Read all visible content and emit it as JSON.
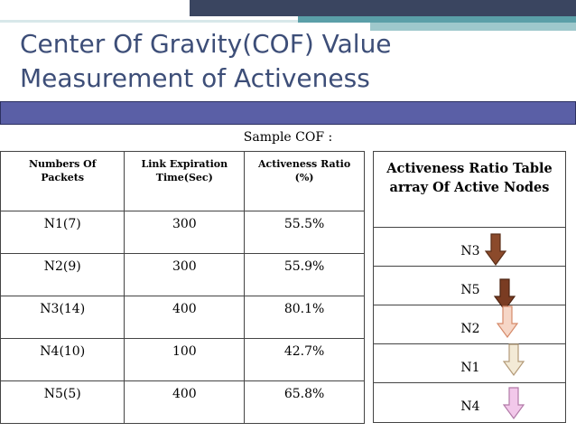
{
  "title": {
    "line1": "Center Of Gravity(COF) Value",
    "line2": "Measurement of Activeness"
  },
  "caption": "Sample COF :",
  "cof_table": {
    "headers": [
      "Numbers Of Packets",
      "Link Expiration Time(Sec)",
      "Activeness  Ratio (%)"
    ],
    "rows": [
      [
        "N1(7)",
        "300",
        "55.5%"
      ],
      [
        "N2(9)",
        "300",
        "55.9%"
      ],
      [
        "N3(14)",
        "400",
        "80.1%"
      ],
      [
        "N4(10)",
        "100",
        "42.7%"
      ],
      [
        "N5(5)",
        "400",
        "65.8%"
      ]
    ]
  },
  "ratio_table": {
    "header": "Activeness Ratio Table array Of  Active Nodes",
    "nodes": [
      "N3",
      "N5",
      "N2",
      "N1",
      "N4"
    ]
  },
  "arrows": [
    {
      "name": "brown-down-arrow-icon",
      "fill": "#8b4a2b",
      "stroke": "#5a2e18"
    },
    {
      "name": "dark-brown-down-arrow-icon",
      "fill": "#7a3c22",
      "stroke": "#4e2412"
    },
    {
      "name": "peach-down-arrow-icon",
      "fill": "#f6d6c6",
      "stroke": "#d58a6a"
    },
    {
      "name": "cream-down-arrow-icon",
      "fill": "#f3ead6",
      "stroke": "#b39a78"
    },
    {
      "name": "pink-down-arrow-icon",
      "fill": "#f2c8ea",
      "stroke": "#b27aa8"
    }
  ]
}
